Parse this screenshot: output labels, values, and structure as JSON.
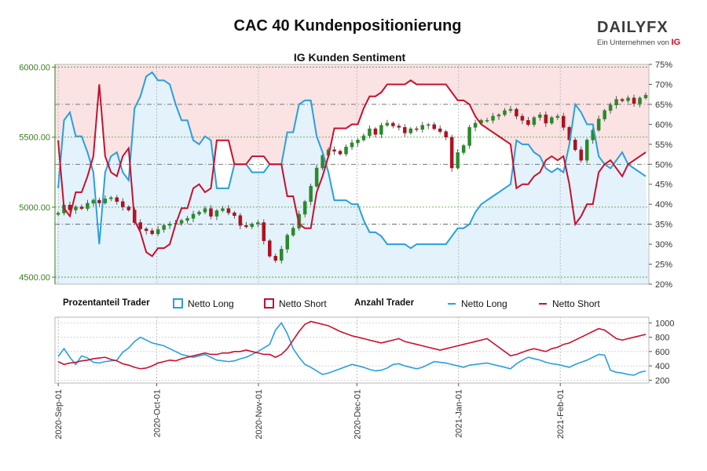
{
  "title": "CAC 40 Kundenpositionierung",
  "subtitle": "IG Kunden Sentiment",
  "logo": {
    "word": "DAILYFX",
    "sub": "Ein Unternehmen von",
    "ig": "IG"
  },
  "legend": {
    "pct_heading": "Prozentanteil Trader",
    "pct_long": "Netto Long",
    "pct_short": "Netto Short",
    "count_heading": "Anzahl Trader",
    "count_long": "Netto Long",
    "count_short": "Netto Short"
  },
  "colors": {
    "long": "#2a9fde",
    "short": "#c8102e",
    "long_fill": "#e3f2fb",
    "short_fill": "#fbe3e3",
    "up": "#2a8a2a",
    "down": "#b01020"
  },
  "chart_data": [
    {
      "type": "line",
      "panel": "price-sentiment",
      "x_ticks": [
        "2020-Sep-01",
        "2020-Oct-01",
        "2020-Nov-01",
        "2020-Dec-01",
        "2021-Jan-01",
        "2021-Feb-01"
      ],
      "x_range": [
        "2020-Aug-31",
        "2021-Feb-28"
      ],
      "price_axis": {
        "ylim": [
          4450,
          6020
        ],
        "ticks": [
          4500,
          5000,
          5500,
          6000
        ],
        "tick_labels": [
          "4500.00",
          "5000.00",
          "5500.00",
          "6000.00"
        ],
        "side": "left"
      },
      "pct_axis": {
        "ylim": [
          20,
          75
        ],
        "ticks": [
          20,
          25,
          30,
          35,
          40,
          45,
          50,
          55,
          60,
          65,
          70,
          75
        ],
        "tick_labels": [
          "20%",
          "25%",
          "30%",
          "35%",
          "40%",
          "45%",
          "50%",
          "55%",
          "60%",
          "65%",
          "70%",
          "75%"
        ],
        "side": "right"
      },
      "price_close": [
        4958,
        5015,
        4980,
        5002,
        4990,
        5028,
        5050,
        5030,
        5060,
        5068,
        5040,
        5002,
        4980,
        4890,
        4845,
        4832,
        4810,
        4840,
        4870,
        4880,
        4885,
        4905,
        4920,
        4950,
        4965,
        4990,
        4935,
        4975,
        4990,
        4960,
        4940,
        4870,
        4860,
        4880,
        4890,
        4760,
        4650,
        4620,
        4700,
        4800,
        4850,
        4950,
        5040,
        5150,
        5280,
        5370,
        5410,
        5400,
        5380,
        5430,
        5460,
        5480,
        5510,
        5560,
        5520,
        5585,
        5600,
        5580,
        5570,
        5530,
        5560,
        5555,
        5585,
        5590,
        5560,
        5540,
        5500,
        5280,
        5390,
        5440,
        5570,
        5600,
        5620,
        5620,
        5650,
        5660,
        5690,
        5700,
        5650,
        5620,
        5590,
        5640,
        5660,
        5600,
        5640,
        5650,
        5570,
        5480,
        5410,
        5335,
        5480,
        5550,
        5630,
        5690,
        5730,
        5770,
        5760,
        5780,
        5740,
        5780,
        5800
      ],
      "series": [
        {
          "name": "Netto Long",
          "values": [
            44,
            61,
            63,
            57,
            57,
            53,
            48,
            30,
            48,
            52,
            53,
            48,
            46,
            64,
            67,
            72,
            73,
            71,
            71,
            70,
            65,
            61,
            61,
            56,
            55,
            57,
            56,
            44,
            44,
            44,
            50,
            50,
            50,
            48,
            48,
            48,
            50,
            50,
            50,
            58,
            58,
            65,
            66,
            66,
            57,
            53,
            48,
            41,
            41,
            41,
            40,
            40,
            36,
            33,
            33,
            32,
            30,
            30,
            30,
            30,
            29,
            30,
            30,
            30,
            30,
            30,
            30,
            32,
            34,
            34,
            35,
            38,
            40,
            41,
            42,
            43,
            44,
            45,
            56,
            55,
            55,
            53,
            52,
            49,
            48,
            49,
            48,
            55,
            65,
            63,
            60,
            60,
            52,
            50,
            49,
            51,
            53,
            50,
            49,
            48,
            47
          ]
        },
        {
          "name": "Netto Short",
          "values": [
            56,
            39,
            37,
            43,
            43,
            47,
            52,
            70,
            52,
            48,
            47,
            52,
            54,
            36,
            33,
            28,
            27,
            29,
            29,
            30,
            35,
            39,
            39,
            44,
            45,
            43,
            44,
            56,
            56,
            56,
            50,
            50,
            50,
            52,
            52,
            52,
            50,
            50,
            50,
            42,
            42,
            35,
            34,
            34,
            43,
            47,
            52,
            59,
            59,
            59,
            60,
            60,
            64,
            67,
            67,
            68,
            70,
            70,
            70,
            70,
            71,
            70,
            70,
            70,
            70,
            70,
            70,
            68,
            66,
            66,
            65,
            62,
            60,
            59,
            58,
            57,
            56,
            55,
            44,
            45,
            45,
            47,
            48,
            51,
            52,
            51,
            52,
            45,
            35,
            37,
            40,
            40,
            48,
            50,
            51,
            49,
            47,
            50,
            51,
            52,
            53
          ]
        }
      ]
    },
    {
      "type": "line",
      "panel": "trader-count",
      "x_ticks": [
        "2020-Sep-01",
        "2020-Oct-01",
        "2020-Nov-01",
        "2020-Dec-01",
        "2021-Jan-01",
        "2021-Feb-01"
      ],
      "ylim": [
        160,
        1080
      ],
      "ticks": [
        200,
        400,
        600,
        800,
        1000
      ],
      "tick_labels": [
        "200",
        "400",
        "600",
        "800",
        "1000"
      ],
      "series": [
        {
          "name": "Netto Long",
          "values": [
            530,
            640,
            520,
            420,
            540,
            510,
            450,
            440,
            460,
            470,
            480,
            590,
            650,
            740,
            800,
            760,
            720,
            700,
            680,
            640,
            600,
            560,
            540,
            520,
            540,
            560,
            520,
            480,
            470,
            460,
            470,
            500,
            520,
            560,
            600,
            650,
            700,
            900,
            1000,
            850,
            640,
            520,
            420,
            380,
            330,
            280,
            300,
            330,
            360,
            390,
            420,
            400,
            380,
            350,
            330,
            340,
            370,
            420,
            430,
            400,
            380,
            360,
            380,
            420,
            460,
            450,
            440,
            420,
            400,
            380,
            410,
            420,
            430,
            440,
            420,
            400,
            380,
            360,
            430,
            480,
            520,
            500,
            480,
            450,
            430,
            420,
            400,
            380,
            420,
            450,
            480,
            520,
            560,
            550,
            340,
            310,
            300,
            280,
            270,
            310,
            330
          ]
        },
        {
          "name": "Netto Short",
          "values": [
            460,
            420,
            440,
            450,
            470,
            480,
            500,
            510,
            520,
            490,
            470,
            430,
            410,
            380,
            360,
            370,
            400,
            440,
            460,
            480,
            470,
            500,
            520,
            540,
            560,
            580,
            560,
            560,
            580,
            580,
            600,
            600,
            620,
            600,
            580,
            560,
            560,
            520,
            560,
            640,
            760,
            880,
            980,
            1020,
            1000,
            980,
            960,
            920,
            880,
            850,
            820,
            800,
            780,
            760,
            740,
            720,
            740,
            760,
            780,
            740,
            720,
            700,
            680,
            660,
            640,
            620,
            640,
            660,
            680,
            700,
            720,
            740,
            760,
            780,
            720,
            660,
            600,
            540,
            560,
            590,
            620,
            640,
            620,
            600,
            640,
            660,
            700,
            720,
            760,
            800,
            840,
            880,
            920,
            900,
            840,
            780,
            760,
            780,
            800,
            820,
            840
          ]
        }
      ]
    }
  ]
}
